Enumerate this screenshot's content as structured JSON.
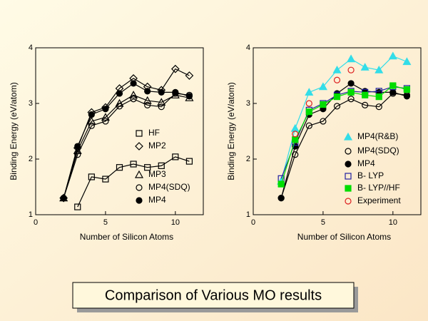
{
  "caption": "Comparison of Various MO results",
  "chart_data": [
    {
      "type": "line",
      "ylabel": "Binding Energy (eV/atom)",
      "xlabel": "Number of Silicon Atoms",
      "xlim": [
        0,
        12
      ],
      "ylim": [
        1,
        4
      ],
      "xticks": [
        0,
        5,
        10
      ],
      "yticks": [
        1,
        2,
        3,
        4
      ],
      "x": [
        2,
        3,
        4,
        5,
        6,
        7,
        8,
        9,
        10,
        11
      ],
      "series": [
        {
          "name": "HF",
          "color": "#000000",
          "marker": "square-open",
          "line": true,
          "values": [
            null,
            1.14,
            1.68,
            1.64,
            1.85,
            1.91,
            1.85,
            1.88,
            2.04,
            1.96
          ]
        },
        {
          "name": "MP2",
          "color": "#000000",
          "marker": "diamond-open",
          "line": true,
          "values": [
            1.3,
            2.2,
            2.84,
            2.93,
            3.27,
            3.45,
            3.3,
            3.24,
            3.62,
            3.5
          ]
        },
        {
          "name": "MP3",
          "color": "#000000",
          "marker": "triangle-open",
          "line": true,
          "values": [
            1.3,
            2.15,
            2.68,
            2.75,
            3.0,
            3.15,
            3.05,
            3.02,
            3.15,
            3.1
          ]
        },
        {
          "name": "MP4(SDQ)",
          "color": "#000000",
          "marker": "circle-open",
          "line": true,
          "values": [
            1.3,
            2.08,
            2.6,
            2.68,
            2.95,
            3.08,
            2.97,
            2.94,
            3.18,
            3.15
          ]
        },
        {
          "name": "MP4",
          "color": "#000000",
          "marker": "circle-filled",
          "line": true,
          "values": [
            1.3,
            2.23,
            2.8,
            2.9,
            3.18,
            3.36,
            3.22,
            3.2,
            3.2,
            3.13
          ]
        }
      ]
    },
    {
      "type": "line",
      "ylabel": "Binding Energy (eV/atom)",
      "xlabel": "Number of Silicon Atoms",
      "xlim": [
        0,
        12
      ],
      "ylim": [
        1,
        4
      ],
      "xticks": [
        0,
        5,
        10
      ],
      "yticks": [
        1,
        2,
        3,
        4
      ],
      "x": [
        2,
        3,
        4,
        5,
        6,
        7,
        8,
        9,
        10,
        11
      ],
      "series": [
        {
          "name": "MP4(R&B)",
          "color": "#33dde8",
          "marker": "triangle-filled",
          "line": true,
          "values": [
            1.6,
            2.55,
            3.2,
            3.3,
            3.6,
            3.8,
            3.65,
            3.6,
            3.85,
            3.75
          ]
        },
        {
          "name": "MP4(SDQ)",
          "color": "#000000",
          "marker": "circle-open",
          "line": true,
          "values": [
            1.3,
            2.08,
            2.6,
            2.68,
            2.95,
            3.08,
            2.97,
            2.94,
            3.18,
            3.15
          ]
        },
        {
          "name": "MP4",
          "color": "#000000",
          "marker": "circle-filled",
          "line": true,
          "values": [
            1.3,
            2.23,
            2.8,
            2.9,
            3.18,
            3.36,
            3.22,
            3.2,
            3.2,
            3.13
          ]
        },
        {
          "name": "B- LYP",
          "color": "#2020a0",
          "marker": "square-open",
          "line": true,
          "values": [
            1.65,
            2.3,
            2.88,
            3.0,
            3.15,
            3.22,
            3.2,
            3.22,
            3.3,
            3.27
          ]
        },
        {
          "name": "B- LYP//HF",
          "color": "#00dd00",
          "marker": "square-filled",
          "line": true,
          "values": [
            1.55,
            2.35,
            2.85,
            2.98,
            3.12,
            3.2,
            3.15,
            3.12,
            3.32,
            3.25
          ]
        },
        {
          "name": "Experiment",
          "color": "#dd2020",
          "marker": "circle-open",
          "line": false,
          "values": [
            null,
            2.45,
            3.0,
            null,
            3.42,
            3.6,
            null,
            null,
            null,
            null
          ]
        }
      ]
    }
  ]
}
